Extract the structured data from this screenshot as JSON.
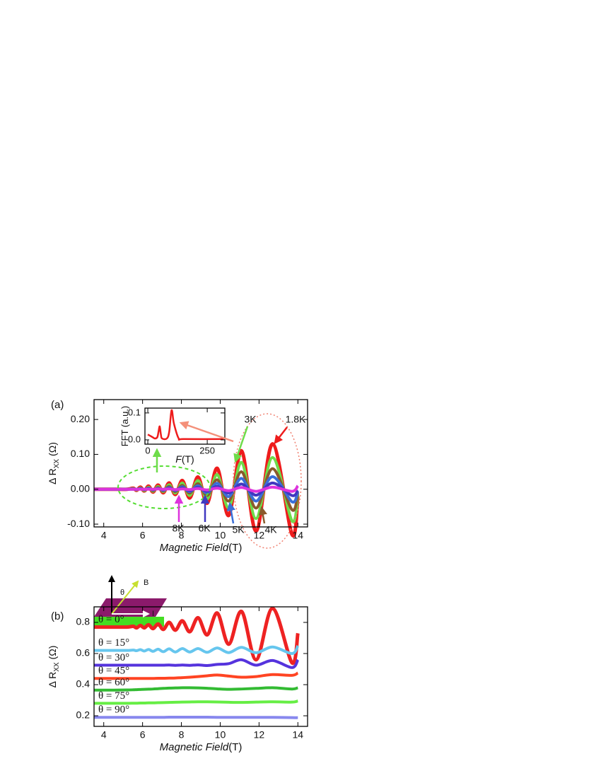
{
  "chart_data": [
    {
      "type": "line",
      "label": "(a)",
      "xlabel": "Magnetic Field",
      "xlabel_unit": "(T)",
      "ylabel": "Δ R",
      "ylabel_sub": "XX",
      "ylabel_unit": "(Ω)",
      "xlim": [
        3.5,
        14.5
      ],
      "xticks": [
        4,
        6,
        8,
        10,
        12,
        14
      ],
      "ylim": [
        -0.108,
        0.257
      ],
      "yticks": [
        {
          "value": 0.2,
          "label": "0.20"
        },
        {
          "value": 0.1,
          "label": "0.10"
        },
        {
          "value": 0,
          "label": "0.00"
        },
        {
          "value": -0.1,
          "label": "-0.10"
        }
      ],
      "x": [
        3.5,
        4.5,
        5.2,
        5.52,
        5.69,
        5.89,
        6.09,
        6.31,
        6.54,
        6.8,
        7.07,
        7.37,
        7.69,
        8.05,
        8.43,
        8.86,
        9.33,
        9.85,
        10.44,
        11.1,
        11.85,
        12.7,
        13.7,
        14
      ],
      "series": [
        {
          "name": "1.8K",
          "color": "#ee1c1c",
          "values": [
            0,
            0,
            0,
            0.003,
            -0.003,
            0.006,
            -0.005,
            0.009,
            -0.008,
            0.012,
            -0.01,
            0.018,
            -0.015,
            0.025,
            -0.025,
            0.035,
            -0.04,
            0.06,
            -0.075,
            0.11,
            -0.12,
            0.13,
            -0.13,
            -0.02
          ]
        },
        {
          "name": "3K",
          "color": "#6edc4a",
          "values": [
            0,
            0,
            0,
            0.002,
            -0.002,
            0.004,
            -0.004,
            0.006,
            -0.006,
            0.008,
            -0.007,
            0.013,
            -0.011,
            0.018,
            -0.018,
            0.025,
            -0.028,
            0.042,
            -0.053,
            0.077,
            -0.084,
            0.091,
            -0.091,
            -0.014
          ]
        },
        {
          "name": "4K",
          "color": "#8b5a2b",
          "values": [
            0,
            0,
            0,
            0.001,
            -0.001,
            0.003,
            -0.002,
            0.004,
            -0.004,
            0.005,
            -0.005,
            0.008,
            -0.007,
            0.011,
            -0.011,
            0.016,
            -0.018,
            0.027,
            -0.034,
            0.05,
            -0.054,
            0.059,
            -0.059,
            -0.009
          ]
        },
        {
          "name": "5K",
          "color": "#3a6fd8",
          "values": [
            0,
            0,
            0,
            0.001,
            -0.001,
            0.002,
            -0.001,
            0.003,
            -0.002,
            0.003,
            -0.003,
            0.005,
            -0.004,
            0.007,
            -0.007,
            0.01,
            -0.011,
            0.017,
            -0.021,
            0.031,
            -0.034,
            0.036,
            -0.036,
            -0.006
          ]
        },
        {
          "name": "6K",
          "color": "#4038c0",
          "values": [
            0,
            0,
            0,
            0,
            0,
            0.001,
            -0.001,
            0.001,
            -0.001,
            0.002,
            -0.001,
            0.003,
            -0.002,
            0.004,
            -0.004,
            0.005,
            -0.006,
            0.008,
            -0.011,
            0.015,
            -0.017,
            0.018,
            -0.018,
            -0.003
          ]
        },
        {
          "name": "8K",
          "color": "#dd33dd",
          "values": [
            0,
            0,
            0,
            0,
            0,
            0,
            0,
            0,
            0,
            0.001,
            0,
            0.001,
            -0.001,
            0.001,
            -0.001,
            0.002,
            -0.002,
            0.003,
            -0.004,
            0.005,
            -0.006,
            0.006,
            -0.006,
            0.01
          ]
        }
      ]
    },
    {
      "type": "line",
      "label": "(b)",
      "xlabel": "Magnetic Field",
      "xlabel_unit": "(T)",
      "ylabel": "Δ R",
      "ylabel_sub": "XX",
      "ylabel_unit": "(Ω)",
      "inset_labels": [
        "θ",
        "B",
        "I"
      ],
      "xlim": [
        3.5,
        14.5
      ],
      "xticks": [
        4,
        6,
        8,
        10,
        12,
        14
      ],
      "ylim": [
        0.132,
        0.9
      ],
      "yticks": [
        0.2,
        0.4,
        0.6,
        0.8
      ],
      "x": [
        3.5,
        4.5,
        5.2,
        5.52,
        5.69,
        5.89,
        6.09,
        6.31,
        6.54,
        6.8,
        7.07,
        7.37,
        7.69,
        8.05,
        8.43,
        8.86,
        9.33,
        9.85,
        10.44,
        11.1,
        11.85,
        12.7,
        13.7,
        14
      ],
      "series": [
        {
          "name": "θ = 0°",
          "color": "#ee2222",
          "values": [
            0.77,
            0.77,
            0.77,
            0.775,
            0.765,
            0.78,
            0.765,
            0.785,
            0.76,
            0.79,
            0.755,
            0.8,
            0.75,
            0.81,
            0.74,
            0.83,
            0.72,
            0.86,
            0.66,
            0.87,
            0.56,
            0.89,
            0.54,
            0.73
          ]
        },
        {
          "name": "θ = 15°",
          "color": "#66c6ee",
          "values": [
            0.62,
            0.62,
            0.62,
            0.622,
            0.618,
            0.625,
            0.616,
            0.626,
            0.614,
            0.628,
            0.612,
            0.63,
            0.61,
            0.632,
            0.61,
            0.632,
            0.608,
            0.636,
            0.606,
            0.64,
            0.605,
            0.642,
            0.6,
            0.65
          ]
        },
        {
          "name": "θ = 30°",
          "color": "#5533dd",
          "values": [
            0.525,
            0.525,
            0.525,
            0.525,
            0.525,
            0.525,
            0.525,
            0.525,
            0.525,
            0.525,
            0.525,
            0.526,
            0.524,
            0.526,
            0.524,
            0.527,
            0.523,
            0.53,
            0.535,
            0.56,
            0.525,
            0.555,
            0.51,
            0.56
          ]
        },
        {
          "name": "θ = 45°",
          "color": "#ff4422",
          "values": [
            0.44,
            0.44,
            0.44,
            0.44,
            0.44,
            0.44,
            0.44,
            0.44,
            0.44,
            0.441,
            0.441,
            0.442,
            0.443,
            0.445,
            0.448,
            0.452,
            0.457,
            0.462,
            0.455,
            0.448,
            0.452,
            0.465,
            0.46,
            0.475
          ]
        },
        {
          "name": "θ = 60°",
          "color": "#33bb33",
          "values": [
            0.365,
            0.365,
            0.366,
            0.367,
            0.368,
            0.369,
            0.37,
            0.371,
            0.372,
            0.374,
            0.376,
            0.378,
            0.379,
            0.38,
            0.38,
            0.379,
            0.377,
            0.373,
            0.37,
            0.372,
            0.376,
            0.38,
            0.372,
            0.38
          ]
        },
        {
          "name": "θ = 75°",
          "color": "#66ee44",
          "values": [
            0.28,
            0.28,
            0.28,
            0.281,
            0.281,
            0.282,
            0.282,
            0.283,
            0.283,
            0.284,
            0.285,
            0.286,
            0.287,
            0.288,
            0.289,
            0.29,
            0.29,
            0.289,
            0.287,
            0.286,
            0.288,
            0.29,
            0.288,
            0.295
          ]
        },
        {
          "name": "θ = 90°",
          "color": "#8888ee",
          "values": [
            0.19,
            0.19,
            0.19,
            0.19,
            0.19,
            0.19,
            0.19,
            0.19,
            0.19,
            0.19,
            0.19,
            0.191,
            0.191,
            0.191,
            0.191,
            0.191,
            0.191,
            0.19,
            0.19,
            0.19,
            0.19,
            0.19,
            0.188,
            0.188
          ]
        }
      ]
    },
    {
      "type": "line",
      "xlabel": "F",
      "xlabel_unit": "(T)",
      "ylabel": "FFT (a.u.)",
      "xlim": [
        -12,
        324
      ],
      "xticks": [
        0,
        250
      ],
      "ylim": [
        -0.016,
        0.118
      ],
      "yticks": [
        {
          "value": 0,
          "label": "0.0"
        },
        {
          "value": 0.1,
          "label": "0.1"
        }
      ],
      "x": [
        0,
        20,
        30,
        40,
        45,
        50,
        55,
        60,
        80,
        90,
        100,
        110,
        130,
        150,
        320
      ],
      "series": [
        {
          "color": "#ee1c1c",
          "values": [
            0.02,
            0.01,
            0.005,
            0.01,
            0.03,
            0.05,
            0.02,
            0.005,
            0.005,
            0.03,
            0.11,
            0.06,
            0.005,
            0.003,
            0.003
          ]
        }
      ]
    }
  ]
}
